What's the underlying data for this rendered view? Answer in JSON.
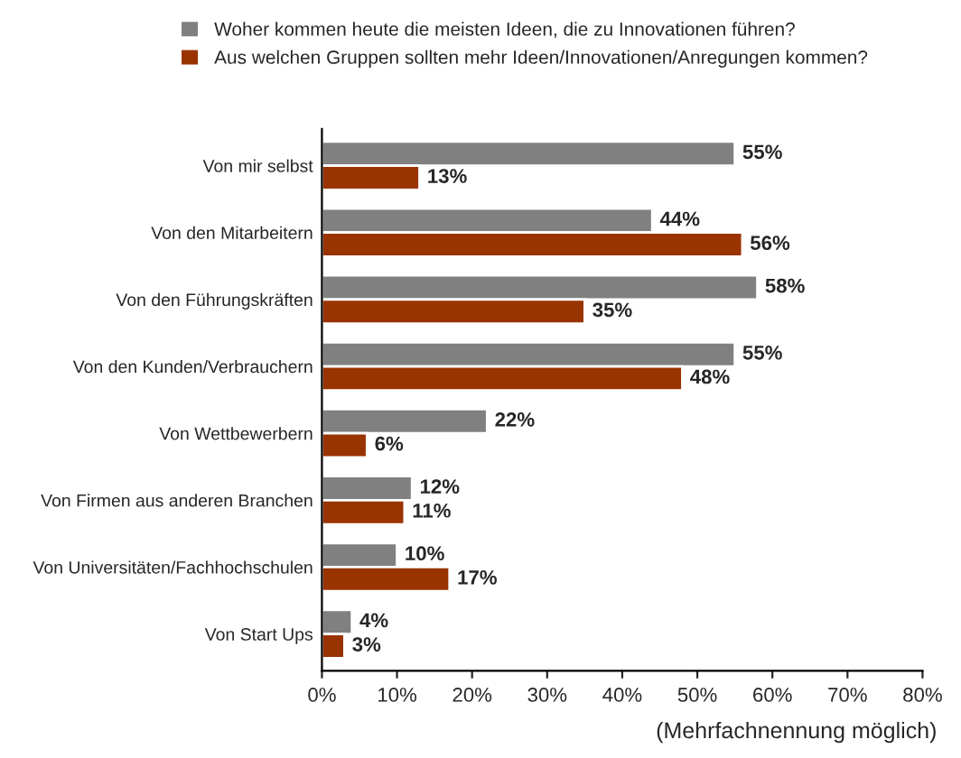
{
  "chart_data": {
    "type": "bar",
    "orientation": "horizontal",
    "categories": [
      "Von mir selbst",
      "Von den Mitarbeitern",
      "Von den Führungskräften",
      "Von den Kunden/Verbrauchern",
      "Von Wettbewerbern",
      "Von Firmen aus anderen Branchen",
      "Von Universitäten/Fachhochschulen",
      "Von Start Ups"
    ],
    "series": [
      {
        "name": "Woher kommen heute die meisten Ideen, die zu Innovationen führen?",
        "color": "#808080",
        "values": [
          55,
          44,
          58,
          55,
          22,
          12,
          10,
          4
        ],
        "value_labels": [
          "55%",
          "44%",
          "58%",
          "55%",
          "22%",
          "12%",
          "10%",
          "4%"
        ]
      },
      {
        "name": "Aus welchen Gruppen sollten mehr Ideen/Innovationen/Anregungen kommen?",
        "color": "#993300",
        "values": [
          13,
          56,
          35,
          48,
          6,
          11,
          17,
          3
        ],
        "value_labels": [
          "13%",
          "56%",
          "35%",
          "48%",
          "6%",
          "11%",
          "17%",
          "3%"
        ]
      }
    ],
    "xlim": [
      0,
      80
    ],
    "xticks": [
      {
        "value": 0,
        "label": "0%"
      },
      {
        "value": 10,
        "label": "10%"
      },
      {
        "value": 20,
        "label": "20%"
      },
      {
        "value": 30,
        "label": "30%"
      },
      {
        "value": 40,
        "label": "40%"
      },
      {
        "value": 50,
        "label": "50%"
      },
      {
        "value": 60,
        "label": "60%"
      },
      {
        "value": 70,
        "label": "70%"
      },
      {
        "value": 80,
        "label": "80%"
      }
    ],
    "legend": "top",
    "grid": false,
    "annotations": [
      "(Mehrfachnennung möglich)"
    ]
  }
}
